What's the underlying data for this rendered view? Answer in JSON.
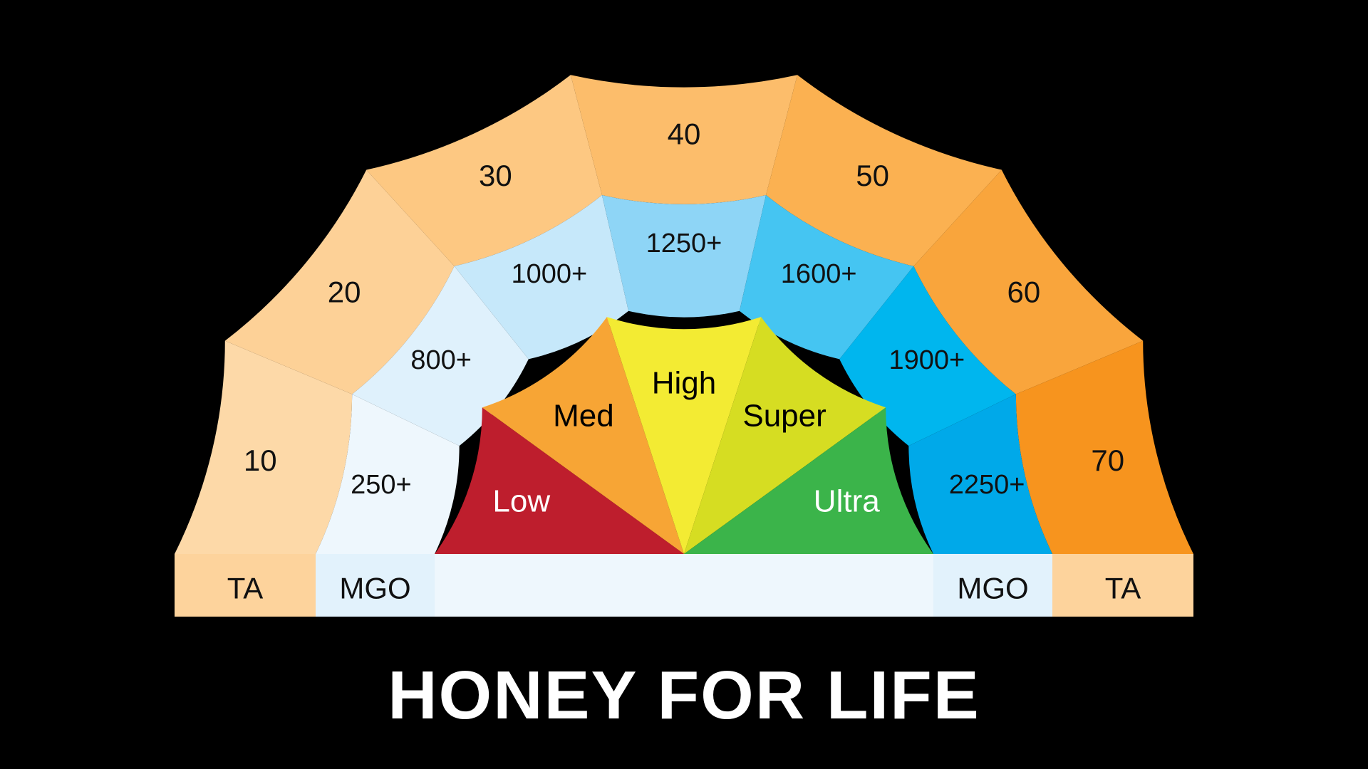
{
  "title": "HONEY FOR LIFE",
  "base_labels": {
    "left_outer": "TA",
    "left_middle": "MGO",
    "right_middle": "MGO",
    "right_outer": "TA"
  },
  "rings": {
    "outer": {
      "name": "TA",
      "labels": [
        "10",
        "20",
        "30",
        "40",
        "50",
        "60",
        "70"
      ],
      "colors": [
        "#fdd9a8",
        "#fdd197",
        "#fdc882",
        "#fcbd6b",
        "#fbb151",
        "#f9a53c",
        "#f7941e"
      ]
    },
    "middle": {
      "name": "MGO",
      "labels": [
        "250+",
        "800+",
        "1000+",
        "1250+",
        "1600+",
        "1900+",
        "2250+"
      ],
      "colors": [
        "#eef7fd",
        "#dff1fc",
        "#c6e8fa",
        "#8ed5f6",
        "#45c5f2",
        "#00b6ee",
        "#00a9e9"
      ]
    },
    "inner": {
      "labels": [
        "Low",
        "Med",
        "High",
        "Super",
        "Ultra"
      ],
      "colors": [
        "#be1e2d",
        "#f7a535",
        "#f3eb33",
        "#d6dd22",
        "#3bb44a"
      ],
      "text_colors": [
        "#ffffff",
        "#000000",
        "#000000",
        "#000000",
        "#ffffff"
      ]
    }
  },
  "base_colors": {
    "ta": "#fdd39c",
    "mgo": "#e2f2fc",
    "center": "#eef7fd"
  }
}
